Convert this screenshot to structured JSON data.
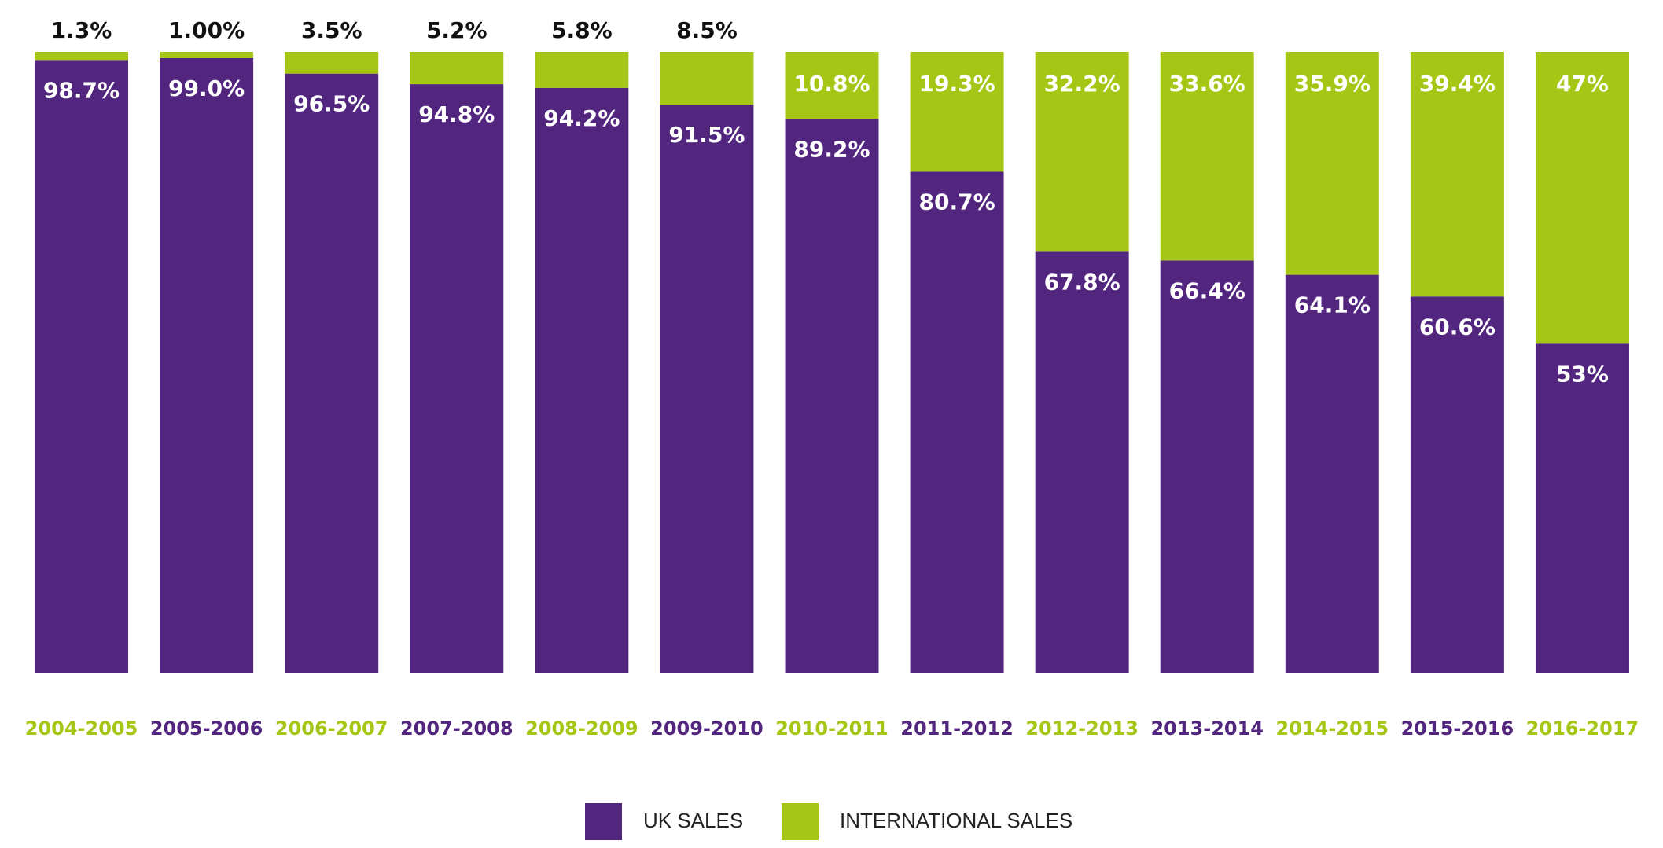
{
  "chart_data": {
    "type": "stacked-bar",
    "categories": [
      "2004-2005",
      "2005-2006",
      "2006-2007",
      "2007-2008",
      "2008-2009",
      "2009-2010",
      "2010-2011",
      "2011-2012",
      "2012-2013",
      "2013-2014",
      "2014-2015",
      "2015-2016",
      "2016-2017"
    ],
    "series": [
      {
        "name": "UK SALES",
        "color": "#52267e",
        "values": [
          98.7,
          99.0,
          96.5,
          94.8,
          94.2,
          91.5,
          89.2,
          80.7,
          67.8,
          66.4,
          64.1,
          60.6,
          53
        ],
        "value_labels": [
          "98.7%",
          "99.0%",
          "96.5%",
          "94.8%",
          "94.2%",
          "91.5%",
          "89.2%",
          "80.7%",
          "67.8%",
          "66.4%",
          "64.1%",
          "60.6%",
          "53%"
        ]
      },
      {
        "name": "INTERNATIONAL SALES",
        "color": "#a5c614",
        "values": [
          1.3,
          1.0,
          3.5,
          5.2,
          5.8,
          8.5,
          10.8,
          19.3,
          32.2,
          33.6,
          35.9,
          39.4,
          47
        ],
        "value_labels": [
          "1.3%",
          "1.00%",
          "3.5%",
          "5.2%",
          "5.8%",
          "8.5%",
          "10.8%",
          "19.3%",
          "32.2%",
          "33.6%",
          "35.9%",
          "39.4%",
          "47%"
        ]
      }
    ]
  }
}
